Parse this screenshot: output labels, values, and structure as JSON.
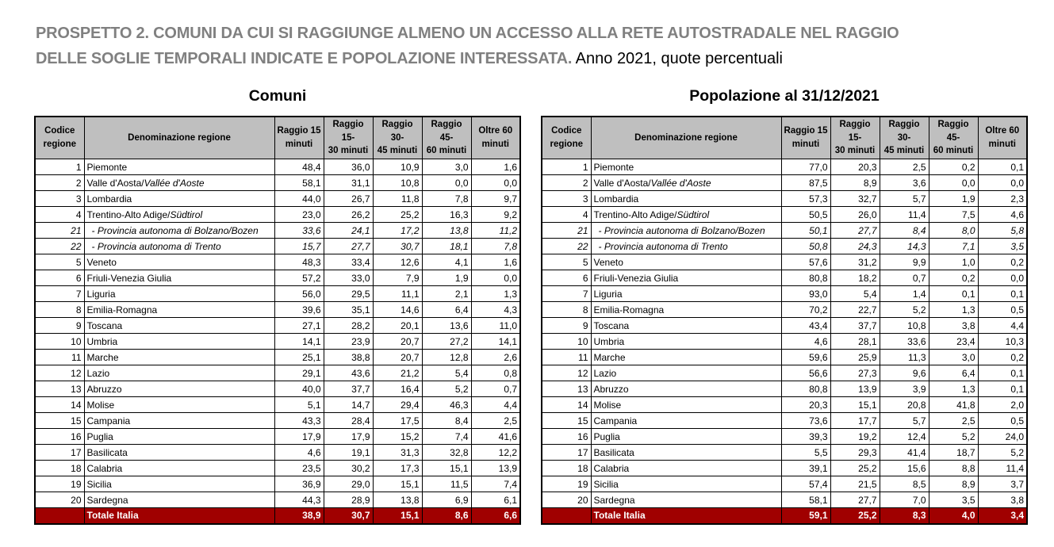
{
  "document": {
    "title_bold": "PROSPETTO 2. COMUNI DA CUI SI RAGGIUNGE ALMENO UN ACCESSO ALLA RETE AUTOSTRADALE NEL RAGGIO\nDELLE SOGLIE TEMPORALI INDICATE E POPOLAZIONE INTERESSATA.",
    "title_regular": " Anno 2021, quote percentuali"
  },
  "colors": {
    "header_bg": "#bfbfbf",
    "total_bg": "#a00000",
    "title_gray": "#808080",
    "border": "#000000"
  },
  "columns": {
    "code": "Codice\nregione",
    "name": "Denominazione regione",
    "radii": [
      "Raggio 15\nminuti",
      "Raggio 15-\n30 minuti",
      "Raggio 30-\n45 minuti",
      "Raggio 45-\n60 minuti",
      "Oltre 60\nminuti"
    ]
  },
  "tables": [
    {
      "id": "comuni",
      "title": "Comuni",
      "rows": [
        {
          "code": "1",
          "name": "Piemonte",
          "values": [
            "48,4",
            "36,0",
            "10,9",
            "3,0",
            "1,6"
          ]
        },
        {
          "code": "2",
          "name": "Valle d'Aosta/",
          "name_italic": "Vallée d'Aoste",
          "values": [
            "58,1",
            "31,1",
            "10,8",
            "0,0",
            "0,0"
          ]
        },
        {
          "code": "3",
          "name": "Lombardia",
          "values": [
            "44,0",
            "26,7",
            "11,8",
            "7,8",
            "9,7"
          ]
        },
        {
          "code": "4",
          "name": "Trentino-Alto Adige/",
          "name_italic": "Südtirol",
          "values": [
            "23,0",
            "26,2",
            "25,2",
            "16,3",
            "9,2"
          ]
        },
        {
          "code": "21",
          "name": "- Provincia autonoma di Bolzano/Bozen",
          "italic": true,
          "indent": true,
          "values": [
            "33,6",
            "24,1",
            "17,2",
            "13,8",
            "11,2"
          ]
        },
        {
          "code": "22",
          "name": "- Provincia autonoma di Trento",
          "italic": true,
          "indent": true,
          "values": [
            "15,7",
            "27,7",
            "30,7",
            "18,1",
            "7,8"
          ]
        },
        {
          "code": "5",
          "name": "Veneto",
          "values": [
            "48,3",
            "33,4",
            "12,6",
            "4,1",
            "1,6"
          ]
        },
        {
          "code": "6",
          "name": "Friuli-Venezia Giulia",
          "values": [
            "57,2",
            "33,0",
            "7,9",
            "1,9",
            "0,0"
          ]
        },
        {
          "code": "7",
          "name": "Liguria",
          "values": [
            "56,0",
            "29,5",
            "11,1",
            "2,1",
            "1,3"
          ]
        },
        {
          "code": "8",
          "name": "Emilia-Romagna",
          "values": [
            "39,6",
            "35,1",
            "14,6",
            "6,4",
            "4,3"
          ]
        },
        {
          "code": "9",
          "name": "Toscana",
          "values": [
            "27,1",
            "28,2",
            "20,1",
            "13,6",
            "11,0"
          ]
        },
        {
          "code": "10",
          "name": "Umbria",
          "values": [
            "14,1",
            "23,9",
            "20,7",
            "27,2",
            "14,1"
          ]
        },
        {
          "code": "11",
          "name": "Marche",
          "values": [
            "25,1",
            "38,8",
            "20,7",
            "12,8",
            "2,6"
          ]
        },
        {
          "code": "12",
          "name": "Lazio",
          "values": [
            "29,1",
            "43,6",
            "21,2",
            "5,4",
            "0,8"
          ]
        },
        {
          "code": "13",
          "name": "Abruzzo",
          "values": [
            "40,0",
            "37,7",
            "16,4",
            "5,2",
            "0,7"
          ]
        },
        {
          "code": "14",
          "name": "Molise",
          "values": [
            "5,1",
            "14,7",
            "29,4",
            "46,3",
            "4,4"
          ]
        },
        {
          "code": "15",
          "name": "Campania",
          "values": [
            "43,3",
            "28,4",
            "17,5",
            "8,4",
            "2,5"
          ]
        },
        {
          "code": "16",
          "name": "Puglia",
          "values": [
            "17,9",
            "17,9",
            "15,2",
            "7,4",
            "41,6"
          ]
        },
        {
          "code": "17",
          "name": "Basilicata",
          "values": [
            "4,6",
            "19,1",
            "31,3",
            "32,8",
            "12,2"
          ]
        },
        {
          "code": "18",
          "name": "Calabria",
          "values": [
            "23,5",
            "30,2",
            "17,3",
            "15,1",
            "13,9"
          ]
        },
        {
          "code": "19",
          "name": "Sicilia",
          "values": [
            "36,9",
            "29,0",
            "15,1",
            "11,5",
            "7,4"
          ]
        },
        {
          "code": "20",
          "name": "Sardegna",
          "values": [
            "44,3",
            "28,9",
            "13,8",
            "6,9",
            "6,1"
          ]
        }
      ],
      "total": {
        "label": "Totale Italia",
        "values": [
          "38,9",
          "30,7",
          "15,1",
          "8,6",
          "6,6"
        ]
      }
    },
    {
      "id": "popolazione",
      "title": "Popolazione al 31/12/2021",
      "rows": [
        {
          "code": "1",
          "name": "Piemonte",
          "values": [
            "77,0",
            "20,3",
            "2,5",
            "0,2",
            "0,1"
          ]
        },
        {
          "code": "2",
          "name": "Valle d'Aosta/",
          "name_italic": "Vallée d'Aoste",
          "values": [
            "87,5",
            "8,9",
            "3,6",
            "0,0",
            "0,0"
          ]
        },
        {
          "code": "3",
          "name": "Lombardia",
          "values": [
            "57,3",
            "32,7",
            "5,7",
            "1,9",
            "2,3"
          ]
        },
        {
          "code": "4",
          "name": "Trentino-Alto Adige/",
          "name_italic": "Südtirol",
          "values": [
            "50,5",
            "26,0",
            "11,4",
            "7,5",
            "4,6"
          ]
        },
        {
          "code": "21",
          "name": "- Provincia autonoma di Bolzano/Bozen",
          "italic": true,
          "indent": true,
          "values": [
            "50,1",
            "27,7",
            "8,4",
            "8,0",
            "5,8"
          ]
        },
        {
          "code": "22",
          "name": "- Provincia autonoma di Trento",
          "italic": true,
          "indent": true,
          "values": [
            "50,8",
            "24,3",
            "14,3",
            "7,1",
            "3,5"
          ]
        },
        {
          "code": "5",
          "name": "Veneto",
          "values": [
            "57,6",
            "31,2",
            "9,9",
            "1,0",
            "0,2"
          ]
        },
        {
          "code": "6",
          "name": "Friuli-Venezia Giulia",
          "values": [
            "80,8",
            "18,2",
            "0,7",
            "0,2",
            "0,0"
          ]
        },
        {
          "code": "7",
          "name": "Liguria",
          "values": [
            "93,0",
            "5,4",
            "1,4",
            "0,1",
            "0,1"
          ]
        },
        {
          "code": "8",
          "name": "Emilia-Romagna",
          "values": [
            "70,2",
            "22,7",
            "5,2",
            "1,3",
            "0,5"
          ]
        },
        {
          "code": "9",
          "name": "Toscana",
          "values": [
            "43,4",
            "37,7",
            "10,8",
            "3,8",
            "4,4"
          ]
        },
        {
          "code": "10",
          "name": "Umbria",
          "values": [
            "4,6",
            "28,1",
            "33,6",
            "23,4",
            "10,3"
          ]
        },
        {
          "code": "11",
          "name": "Marche",
          "values": [
            "59,6",
            "25,9",
            "11,3",
            "3,0",
            "0,2"
          ]
        },
        {
          "code": "12",
          "name": "Lazio",
          "values": [
            "56,6",
            "27,3",
            "9,6",
            "6,4",
            "0,1"
          ]
        },
        {
          "code": "13",
          "name": "Abruzzo",
          "values": [
            "80,8",
            "13,9",
            "3,9",
            "1,3",
            "0,1"
          ]
        },
        {
          "code": "14",
          "name": "Molise",
          "values": [
            "20,3",
            "15,1",
            "20,8",
            "41,8",
            "2,0"
          ]
        },
        {
          "code": "15",
          "name": "Campania",
          "values": [
            "73,6",
            "17,7",
            "5,7",
            "2,5",
            "0,5"
          ]
        },
        {
          "code": "16",
          "name": "Puglia",
          "values": [
            "39,3",
            "19,2",
            "12,4",
            "5,2",
            "24,0"
          ]
        },
        {
          "code": "17",
          "name": "Basilicata",
          "values": [
            "5,5",
            "29,3",
            "41,4",
            "18,7",
            "5,2"
          ]
        },
        {
          "code": "18",
          "name": "Calabria",
          "values": [
            "39,1",
            "25,2",
            "15,6",
            "8,8",
            "11,4"
          ]
        },
        {
          "code": "19",
          "name": "Sicilia",
          "values": [
            "57,4",
            "21,5",
            "8,5",
            "8,9",
            "3,7"
          ]
        },
        {
          "code": "20",
          "name": "Sardegna",
          "values": [
            "58,1",
            "27,7",
            "7,0",
            "3,5",
            "3,8"
          ]
        }
      ],
      "total": {
        "label": "Totale Italia",
        "values": [
          "59,1",
          "25,2",
          "8,3",
          "4,0",
          "3,4"
        ]
      }
    }
  ]
}
